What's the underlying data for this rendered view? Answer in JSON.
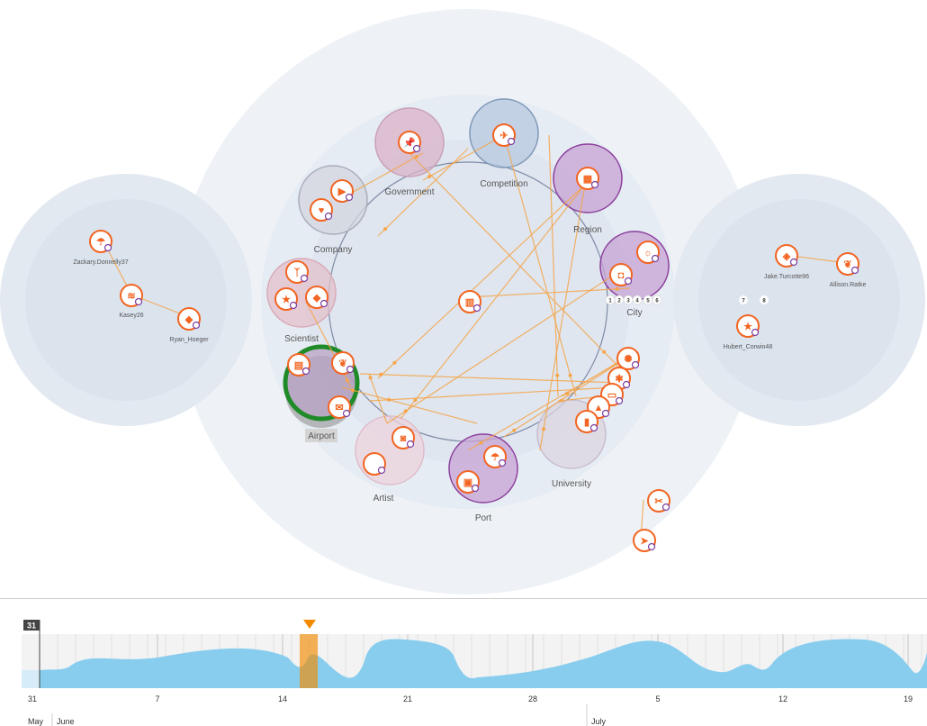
{
  "groups": [
    {
      "id": "government",
      "label": "Government",
      "color": "#d9b3c8",
      "stroke": "#c9a0b6"
    },
    {
      "id": "competition",
      "label": "Competition",
      "color": "#b7c8df",
      "stroke": "#7e98b8"
    },
    {
      "id": "region",
      "label": "Region",
      "color": "#c7a3d4",
      "stroke": "#8b3e9c"
    },
    {
      "id": "company",
      "label": "Company",
      "color": "#d3d6df",
      "stroke": "#a9adb9"
    },
    {
      "id": "city",
      "label": "City",
      "color": "#c7a3d4",
      "stroke": "#8b3e9c"
    },
    {
      "id": "scientist",
      "label": "Scientist",
      "color": "#e3c0cb",
      "stroke": "#d8a9b8"
    },
    {
      "id": "airport",
      "label": "Airport",
      "color": "#b9a3c6",
      "stroke": "#1f8a28"
    },
    {
      "id": "artist",
      "label": "Artist",
      "color": "#ecd3dc",
      "stroke": "#dfbcca"
    },
    {
      "id": "port",
      "label": "Port",
      "color": "#c7a3d4",
      "stroke": "#8b3e9c"
    },
    {
      "id": "university",
      "label": "University",
      "color": "#dcd5e0",
      "stroke": "#c7bdce"
    }
  ],
  "people": [
    {
      "label": "Zackary.Donnelly37",
      "icon": "umbrella-beach-icon"
    },
    {
      "label": "Kasey26",
      "icon": "rss-icon"
    },
    {
      "label": "Ryan_Hoeger",
      "icon": "car-icon"
    },
    {
      "label": "Jake.Turcotte96",
      "icon": "box-icon"
    },
    {
      "label": "Allison.Ratke",
      "icon": "seedling-icon"
    },
    {
      "label": "Hubert_Corwin48",
      "icon": "star-icon"
    }
  ],
  "city_badges": [
    "1",
    "2",
    "3",
    "4",
    "5",
    "6"
  ],
  "right_badges": [
    "7",
    "8"
  ],
  "accent": "#f26522",
  "edge_color": "#f5a54a",
  "timeline": {
    "current_day": "31",
    "tick_labels": [
      "31",
      "7",
      "14",
      "21",
      "28",
      "5",
      "12",
      "19"
    ],
    "months": [
      "May",
      "June",
      "July"
    ],
    "fill_color": "#88cdee",
    "marker_color": "#f28a00"
  }
}
